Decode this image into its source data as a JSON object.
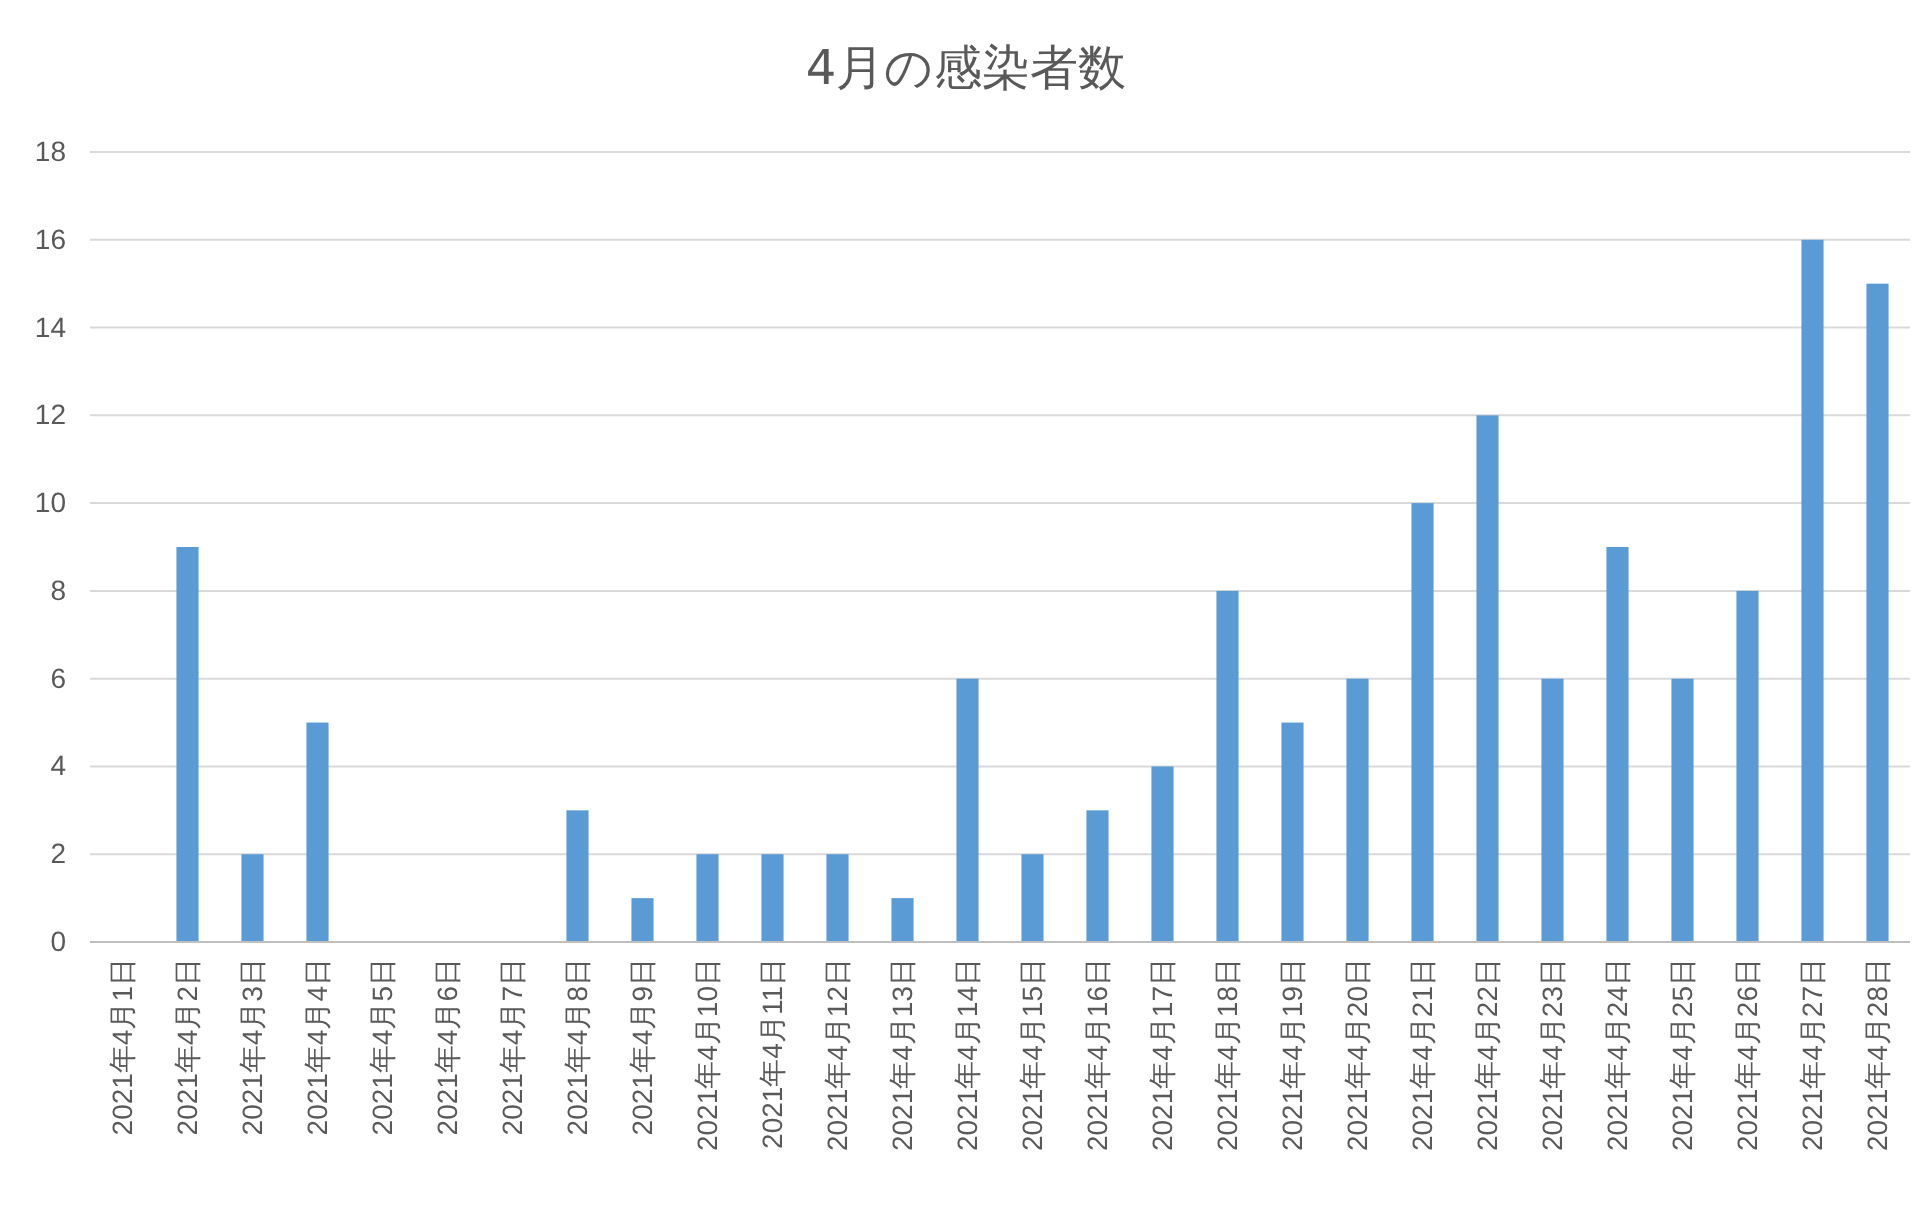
{
  "chart_data": {
    "type": "bar",
    "title": "4月の感染者数",
    "categories": [
      "2021年4月1日",
      "2021年4月2日",
      "2021年4月3日",
      "2021年4月4日",
      "2021年4月5日",
      "2021年4月6日",
      "2021年4月7日",
      "2021年4月8日",
      "2021年4月9日",
      "2021年4月10日",
      "2021年4月11日",
      "2021年4月12日",
      "2021年4月13日",
      "2021年4月14日",
      "2021年4月15日",
      "2021年4月16日",
      "2021年4月17日",
      "2021年4月18日",
      "2021年4月19日",
      "2021年4月20日",
      "2021年4月21日",
      "2021年4月22日",
      "2021年4月23日",
      "2021年4月24日",
      "2021年4月25日",
      "2021年4月26日",
      "2021年4月27日",
      "2021年4月28日"
    ],
    "values": [
      0,
      9,
      2,
      5,
      0,
      0,
      0,
      3,
      1,
      2,
      2,
      2,
      1,
      6,
      2,
      3,
      4,
      8,
      5,
      6,
      10,
      12,
      6,
      9,
      6,
      8,
      16,
      15
    ],
    "color": "#5b9bd5",
    "ylim": [
      0,
      18
    ],
    "yticks": [
      0,
      2,
      4,
      6,
      8,
      10,
      12,
      14,
      16,
      18
    ],
    "grid": "y"
  }
}
